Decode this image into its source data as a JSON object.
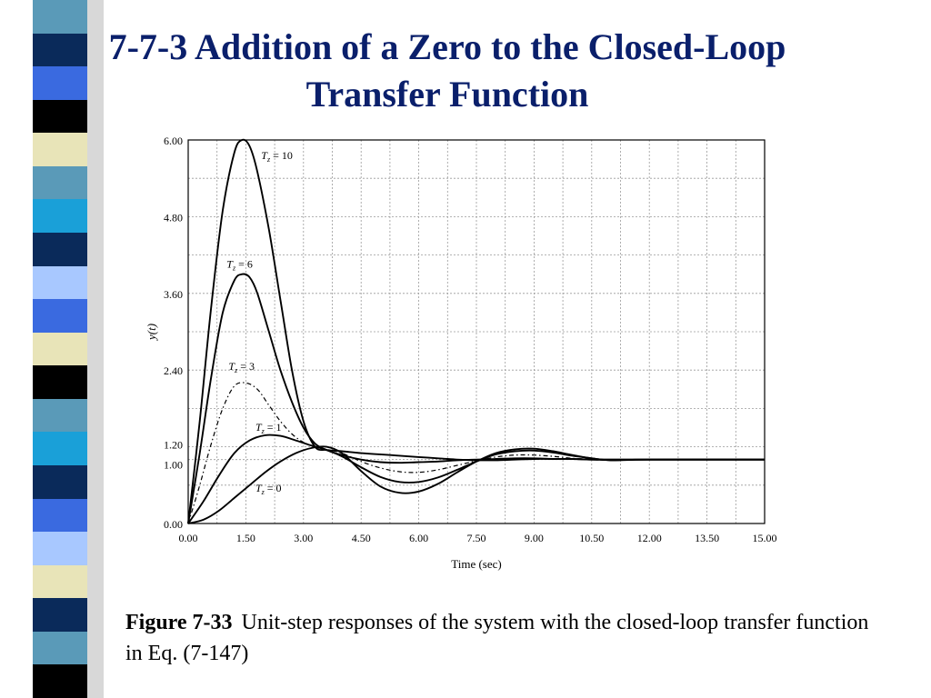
{
  "title": "7-7-3 Addition of a Zero to the Closed-Loop Transfer Function",
  "caption": {
    "figure_label": "Figure 7-33",
    "text": "Unit-step responses of the system with the closed-loop transfer function in Eq. (7-147)"
  },
  "stripe_colors": [
    "#5a9ab8",
    "#0a2a5a",
    "#3a6ae0",
    "#000000",
    "#e8e4b8",
    "#5a9ab8",
    "#1aa0d8",
    "#0a2a5a",
    "#a8c8ff",
    "#3a6ae0",
    "#e8e4b8",
    "#000000",
    "#5a9ab8",
    "#1aa0d8",
    "#0a2a5a",
    "#3a6ae0",
    "#a8c8ff",
    "#e8e4b8",
    "#0a2a5a",
    "#5a9ab8",
    "#000000"
  ],
  "chart_data": {
    "type": "line",
    "xlabel": "Time (sec)",
    "ylabel": "y(t)",
    "xlim": [
      0,
      15
    ],
    "ylim": [
      0,
      6
    ],
    "x_ticks": [
      "0.00",
      "1.50",
      "3.00",
      "4.50",
      "6.00",
      "7.50",
      "9.00",
      "10.50",
      "12.00",
      "13.50",
      "15.00"
    ],
    "y_ticks": [
      {
        "value": 0,
        "label": "0.00"
      },
      {
        "value": 1.0,
        "label": "1.00"
      },
      {
        "value": 1.2,
        "label": "1.20"
      },
      {
        "value": 2.4,
        "label": "2.40"
      },
      {
        "value": 3.6,
        "label": "3.60"
      },
      {
        "value": 4.8,
        "label": "4.80"
      },
      {
        "value": 6.0,
        "label": "6.00"
      }
    ],
    "grid": true,
    "series": [
      {
        "name": "T_z = 10",
        "label_main": "T",
        "label_sub": "z",
        "label_rest": " = 10",
        "label_at": [
          1.9,
          5.7
        ],
        "dash": "",
        "x": [
          0,
          0.3,
          0.6,
          0.9,
          1.2,
          1.4,
          1.6,
          1.8,
          2.1,
          2.4,
          2.7,
          3.0,
          3.3,
          3.6,
          4.0,
          4.5,
          5.0,
          5.5,
          6.0,
          6.5,
          7.0,
          7.5,
          8.0,
          8.5,
          9.0,
          9.5,
          10.0,
          10.5,
          11.0,
          12.0,
          13.0,
          15.0
        ],
        "y": [
          0,
          1.6,
          3.4,
          4.9,
          5.8,
          6.0,
          5.9,
          5.5,
          4.6,
          3.5,
          2.4,
          1.6,
          1.2,
          1.15,
          1.13,
          1.1,
          1.08,
          1.06,
          1.04,
          1.02,
          1.0,
          0.99,
          0.99,
          1.0,
          1.01,
          1.01,
          1.01,
          1.0,
          1.0,
          1.0,
          1.0,
          1.0
        ]
      },
      {
        "name": "T_z = 6",
        "label_main": "T",
        "label_sub": "z",
        "label_rest": " = 6",
        "label_at": [
          1.0,
          4.0
        ],
        "dash": "",
        "x": [
          0,
          0.3,
          0.6,
          0.9,
          1.2,
          1.4,
          1.6,
          1.8,
          2.1,
          2.4,
          2.7,
          3.0,
          3.3,
          3.6,
          4.0,
          4.5,
          5.0,
          5.5,
          6.0,
          6.5,
          7.0,
          7.5,
          8.0,
          8.5,
          9.0,
          9.5,
          10.0,
          10.5,
          11.0,
          12.0,
          13.0,
          15.0
        ],
        "y": [
          0,
          1.1,
          2.3,
          3.3,
          3.8,
          3.9,
          3.85,
          3.6,
          3.0,
          2.4,
          1.9,
          1.5,
          1.25,
          1.15,
          1.07,
          1.0,
          0.96,
          0.95,
          0.96,
          0.97,
          0.99,
          1.0,
          1.01,
          1.02,
          1.02,
          1.01,
          1.01,
          1.0,
          1.0,
          1.0,
          1.0,
          1.0
        ]
      },
      {
        "name": "T_z = 3",
        "label_main": "T",
        "label_sub": "z",
        "label_rest": " = 3",
        "label_at": [
          1.05,
          2.4
        ],
        "dash": "5,3,1.5,3",
        "x": [
          0,
          0.3,
          0.6,
          0.9,
          1.2,
          1.5,
          1.8,
          2.1,
          2.4,
          2.7,
          3.0,
          3.3,
          3.6,
          4.0,
          4.5,
          5.0,
          5.5,
          6.0,
          6.5,
          7.0,
          7.5,
          8.0,
          8.5,
          9.0,
          9.5,
          10.0,
          10.5,
          11.0,
          12.0,
          15.0
        ],
        "y": [
          0,
          0.6,
          1.25,
          1.8,
          2.15,
          2.2,
          2.1,
          1.85,
          1.6,
          1.4,
          1.27,
          1.2,
          1.16,
          1.1,
          0.97,
          0.87,
          0.81,
          0.8,
          0.84,
          0.91,
          0.98,
          1.04,
          1.07,
          1.07,
          1.05,
          1.02,
          1.0,
          0.99,
          1.0,
          1.0
        ]
      },
      {
        "name": "T_z = 1",
        "label_main": "T",
        "label_sub": "z",
        "label_rest": " = 1",
        "label_at": [
          1.75,
          1.45
        ],
        "dash": "",
        "x": [
          0,
          0.4,
          0.8,
          1.2,
          1.6,
          2.0,
          2.4,
          2.8,
          3.2,
          3.6,
          4.0,
          4.5,
          5.0,
          5.5,
          6.0,
          6.5,
          7.0,
          7.5,
          8.0,
          8.5,
          9.0,
          9.5,
          10.0,
          10.5,
          11.0,
          12.0,
          15.0
        ],
        "y": [
          0,
          0.35,
          0.75,
          1.1,
          1.3,
          1.38,
          1.37,
          1.3,
          1.22,
          1.15,
          1.05,
          0.88,
          0.73,
          0.65,
          0.65,
          0.72,
          0.84,
          0.97,
          1.08,
          1.13,
          1.14,
          1.11,
          1.06,
          1.02,
          0.99,
          1.0,
          1.0
        ]
      },
      {
        "name": "T_z = 0",
        "label_main": "T",
        "label_sub": "z",
        "label_rest": " = 0",
        "label_at": [
          1.75,
          0.5
        ],
        "dash": "",
        "x": [
          0,
          0.4,
          0.8,
          1.2,
          1.6,
          2.0,
          2.4,
          2.8,
          3.2,
          3.6,
          4.0,
          4.5,
          5.0,
          5.5,
          6.0,
          6.5,
          7.0,
          7.5,
          8.0,
          8.5,
          9.0,
          9.5,
          10.0,
          10.5,
          11.0,
          12.0,
          15.0
        ],
        "y": [
          0,
          0.06,
          0.2,
          0.4,
          0.6,
          0.8,
          0.97,
          1.1,
          1.18,
          1.2,
          1.1,
          0.82,
          0.58,
          0.48,
          0.5,
          0.62,
          0.8,
          0.97,
          1.1,
          1.16,
          1.17,
          1.13,
          1.07,
          1.02,
          0.99,
          1.0,
          1.0
        ]
      }
    ]
  }
}
